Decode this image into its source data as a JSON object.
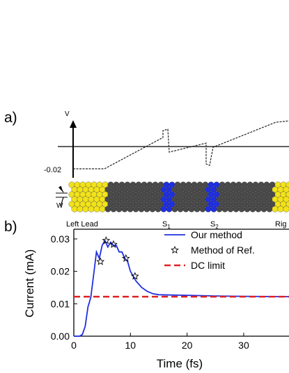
{
  "panel_a": {
    "label": "a)",
    "v_axis_label": "V",
    "v_tick_label": "-0.02",
    "w_label": "W",
    "left_lead_label": "Left Lead",
    "s1_base": "S",
    "s1_sub": "1",
    "s2_base": "S",
    "s2_sub": "2",
    "right_lead_label_partial": "Rig",
    "colors": {
      "lead_atoms": "#f2e21a",
      "carbon_atoms": "#4a4a4a",
      "blue_atoms": "#1f2fe0"
    }
  },
  "panel_b": {
    "label": "b)",
    "chart_data": {
      "type": "line",
      "xlabel": "Time (fs)",
      "ylabel": "Current (mA)",
      "xlim": [
        0,
        38
      ],
      "ylim": [
        0,
        0.033
      ],
      "xticks": [
        "0",
        "10",
        "20",
        "30"
      ],
      "yticks": [
        "0.00",
        "0.01",
        "0.02",
        "0.03"
      ],
      "legend_position": "top-right",
      "series": [
        {
          "name": "Our method",
          "style": "solid-line",
          "color": "#1f2fe0",
          "x": [
            0,
            1.0,
            1.5,
            2.0,
            2.5,
            3.0,
            3.5,
            4.0,
            4.5,
            5.0,
            5.5,
            6.0,
            6.5,
            7.0,
            7.5,
            8.0,
            8.5,
            9.0,
            9.5,
            10.0,
            11.0,
            12.0,
            13.0,
            14.0,
            15.0,
            17.0,
            20.0,
            25.0,
            30.0,
            38.0
          ],
          "y": [
            0.0,
            0.0,
            0.0005,
            0.003,
            0.009,
            0.012,
            0.019,
            0.026,
            0.024,
            0.028,
            0.0295,
            0.0275,
            0.029,
            0.028,
            0.028,
            0.026,
            0.026,
            0.024,
            0.023,
            0.02,
            0.017,
            0.015,
            0.0138,
            0.0131,
            0.0128,
            0.0127,
            0.0126,
            0.0124,
            0.0123,
            0.0122
          ]
        },
        {
          "name": "Method of Ref.",
          "style": "star-markers",
          "color": "#000000",
          "x": [
            4.7,
            5.7,
            7.0,
            9.2,
            10.8
          ],
          "y": [
            0.023,
            0.0295,
            0.0283,
            0.024,
            0.0185
          ]
        },
        {
          "name": "DC limit",
          "style": "dashed-line",
          "color": "#e02020",
          "x": [
            0,
            38
          ],
          "y": [
            0.0122,
            0.0122
          ]
        }
      ]
    }
  }
}
